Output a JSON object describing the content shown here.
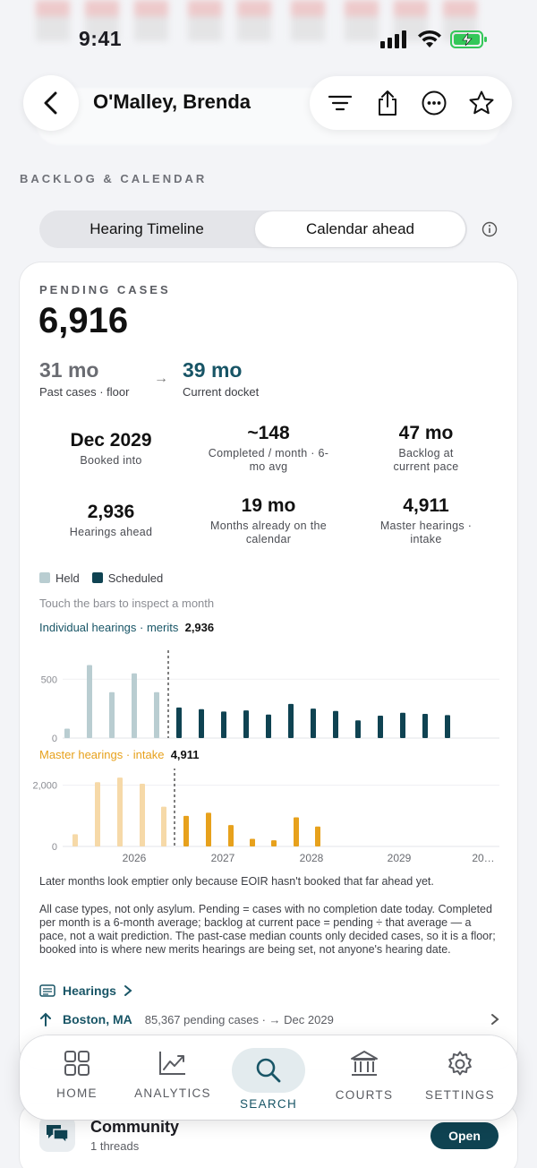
{
  "status_bar": {
    "time": "9:41"
  },
  "header": {
    "title": "O'Malley, Brenda"
  },
  "section": {
    "label": "BACKLOG & CALENDAR"
  },
  "segmented": {
    "tabs": [
      "Hearing Timeline",
      "Calendar ahead"
    ],
    "active": 1
  },
  "pending": {
    "label": "PENDING CASES",
    "value": "6,916"
  },
  "wait": {
    "past_value": "31 mo",
    "past_label": "Past cases · floor",
    "arrow": "→",
    "current_value": "39 mo",
    "current_label": "Current docket"
  },
  "stats": [
    {
      "value": "Dec 2029",
      "label": "Booked into"
    },
    {
      "value": "~148",
      "label": "Completed / month · 6-mo avg"
    },
    {
      "value": "47 mo",
      "label": "Backlog at current pace"
    },
    {
      "value": "2,936",
      "label": "Hearings ahead"
    },
    {
      "value": "19 mo",
      "label": "Months already on the calendar"
    },
    {
      "value": "4,911",
      "label": "Master hearings · intake"
    }
  ],
  "legend": {
    "held": "Held",
    "scheduled": "Scheduled"
  },
  "hint": "Touch the bars to inspect a month",
  "colors": {
    "teal_dark": "#0f4352",
    "teal_held": "#b9cdd1",
    "orange": "#e7a11c",
    "orange_held": "#f6d9a8"
  },
  "chart_data": [
    {
      "type": "bar",
      "title": "Individual hearings · merits",
      "total": "2,936",
      "ytick_labels": [
        "500",
        "0"
      ],
      "ylim": [
        0,
        700
      ],
      "series": [
        {
          "name": "Held",
          "values": [
            80,
            620,
            390,
            550,
            390
          ]
        },
        {
          "name": "Scheduled",
          "values": [
            260,
            245,
            225,
            235,
            200,
            290,
            250,
            230,
            150,
            190,
            215,
            205,
            195
          ]
        }
      ],
      "divider_after_index": 4
    },
    {
      "type": "bar",
      "title": "Master hearings · intake",
      "total": "4,911",
      "ytick_labels": [
        "2,000",
        "0"
      ],
      "ylim": [
        0,
        2400
      ],
      "xtick_labels": [
        "2026",
        "2027",
        "2028",
        "2029",
        "20…"
      ],
      "series": [
        {
          "name": "Held",
          "values": [
            400,
            2100,
            2250,
            2050,
            1300
          ]
        },
        {
          "name": "Scheduled",
          "values": [
            1000,
            1100,
            700,
            250,
            200,
            950,
            650
          ]
        }
      ],
      "divider_after_index": 4
    }
  ],
  "notes": {
    "empty_months": "Later months look emptier only because EOIR hasn't booked that far ahead yet.",
    "methodology": "All case types, not only asylum. Pending = cases with no completion date today. Completed per month is a 6-month average; backlog at current pace = pending ÷ that average — a pace, not a wait prediction. The past-case median counts only decided cases, so it is a floor; booked into is where new merits hearings are being set, not anyone's hearing date."
  },
  "links": {
    "hearings": "Hearings",
    "location_name": "Boston, MA",
    "location_detail": "85,367 pending cases · → Dec 2029"
  },
  "community": {
    "title": "Community",
    "sub": "1 threads",
    "button": "Open"
  },
  "tabbar": [
    "HOME",
    "ANALYTICS",
    "SEARCH",
    "COURTS",
    "SETTINGS"
  ]
}
